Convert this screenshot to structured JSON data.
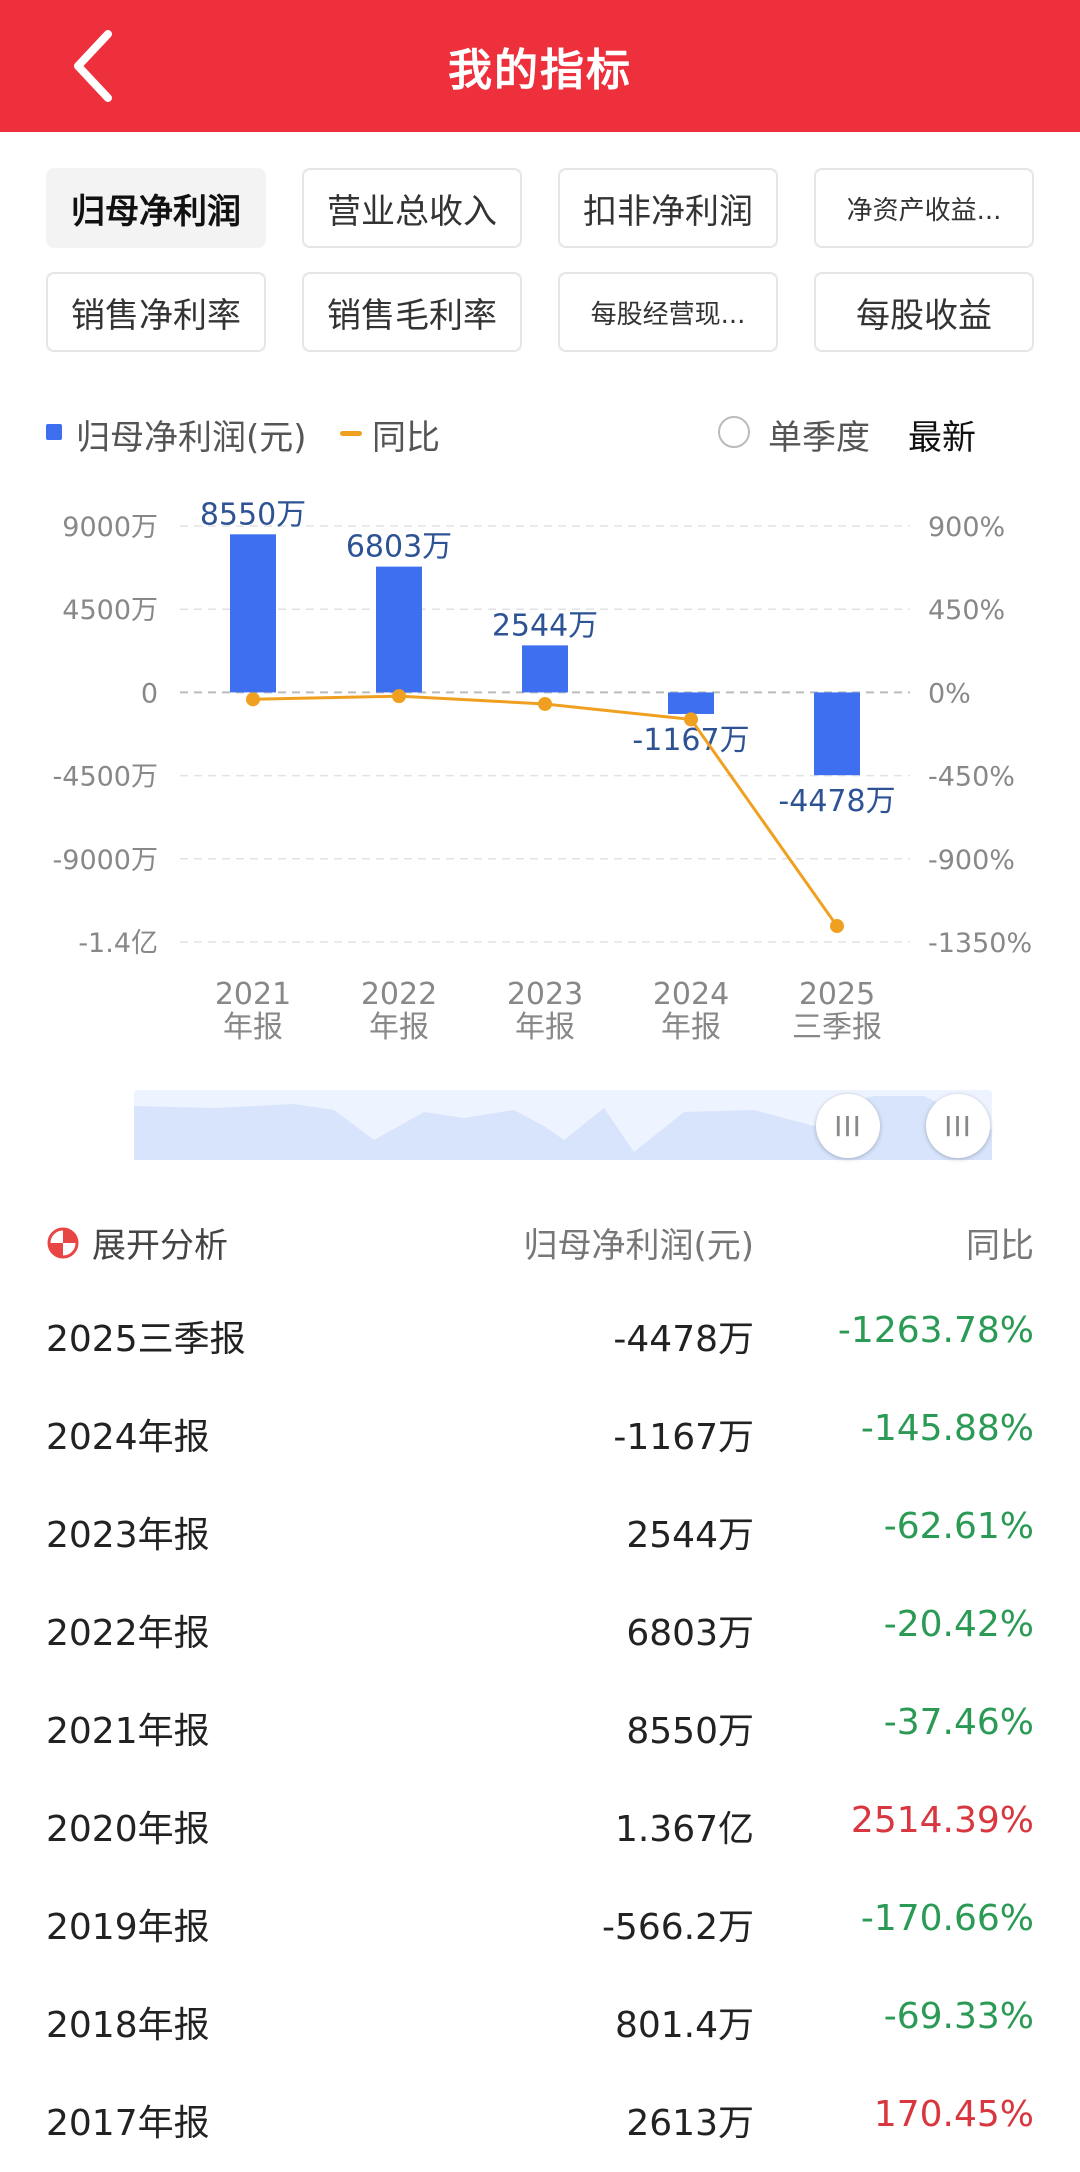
{
  "header": {
    "title": "我的指标"
  },
  "tabs": [
    {
      "label": "归母净利润",
      "active": true
    },
    {
      "label": "营业总收入"
    },
    {
      "label": "扣非净利润"
    },
    {
      "label": "净资产收益...",
      "small": true
    },
    {
      "label": "销售净利率"
    },
    {
      "label": "销售毛利率"
    },
    {
      "label": "每股经营现...",
      "small": true
    },
    {
      "label": "每股收益"
    }
  ],
  "legend": {
    "series1": "归母净利润(元)",
    "series2": "同比",
    "quarter": "单季度",
    "latest": "最新"
  },
  "chart_data": {
    "type": "bar",
    "categories": [
      [
        "2021",
        "年报"
      ],
      [
        "2022",
        "年报"
      ],
      [
        "2023",
        "年报"
      ],
      [
        "2024",
        "年报"
      ],
      [
        "2025",
        "三季报"
      ]
    ],
    "series": [
      {
        "name": "归母净利润(元)",
        "type": "bar",
        "values": [
          8550,
          6803,
          2544,
          -1167,
          -4478
        ],
        "labels": [
          "8550万",
          "6803万",
          "2544万",
          "-1167万",
          "-4478万"
        ],
        "color": "#3d6ff0"
      },
      {
        "name": "同比",
        "type": "line",
        "values": [
          -37.46,
          -20.42,
          -62.61,
          -145.88,
          -1263.78
        ],
        "color": "#f0a020"
      }
    ],
    "ylim_left": [
      -13500,
      9000
    ],
    "ylim_right": [
      -1350,
      900
    ],
    "y_left_ticks": [
      "9000万",
      "4500万",
      "0",
      "-4500万",
      "-9000万",
      "-1.4亿"
    ],
    "y_right_ticks": [
      "900%",
      "450%",
      "0%",
      "-450%",
      "-900%",
      "-1350%"
    ]
  },
  "table": {
    "header": {
      "c1": "展开分析",
      "c2": "归母净利润(元)",
      "c3": "同比"
    },
    "rows": [
      {
        "period": "2025三季报",
        "value": "-4478万",
        "yoy": "-1263.78%",
        "trend": "down"
      },
      {
        "period": "2024年报",
        "value": "-1167万",
        "yoy": "-145.88%",
        "trend": "down"
      },
      {
        "period": "2023年报",
        "value": "2544万",
        "yoy": "-62.61%",
        "trend": "down"
      },
      {
        "period": "2022年报",
        "value": "6803万",
        "yoy": "-20.42%",
        "trend": "down"
      },
      {
        "period": "2021年报",
        "value": "8550万",
        "yoy": "-37.46%",
        "trend": "down"
      },
      {
        "period": "2020年报",
        "value": "1.367亿",
        "yoy": "2514.39%",
        "trend": "up"
      },
      {
        "period": "2019年报",
        "value": "-566.2万",
        "yoy": "-170.66%",
        "trend": "down"
      },
      {
        "period": "2018年报",
        "value": "801.4万",
        "yoy": "-69.33%",
        "trend": "down"
      },
      {
        "period": "2017年报",
        "value": "2613万",
        "yoy": "170.45%",
        "trend": "up"
      }
    ]
  }
}
